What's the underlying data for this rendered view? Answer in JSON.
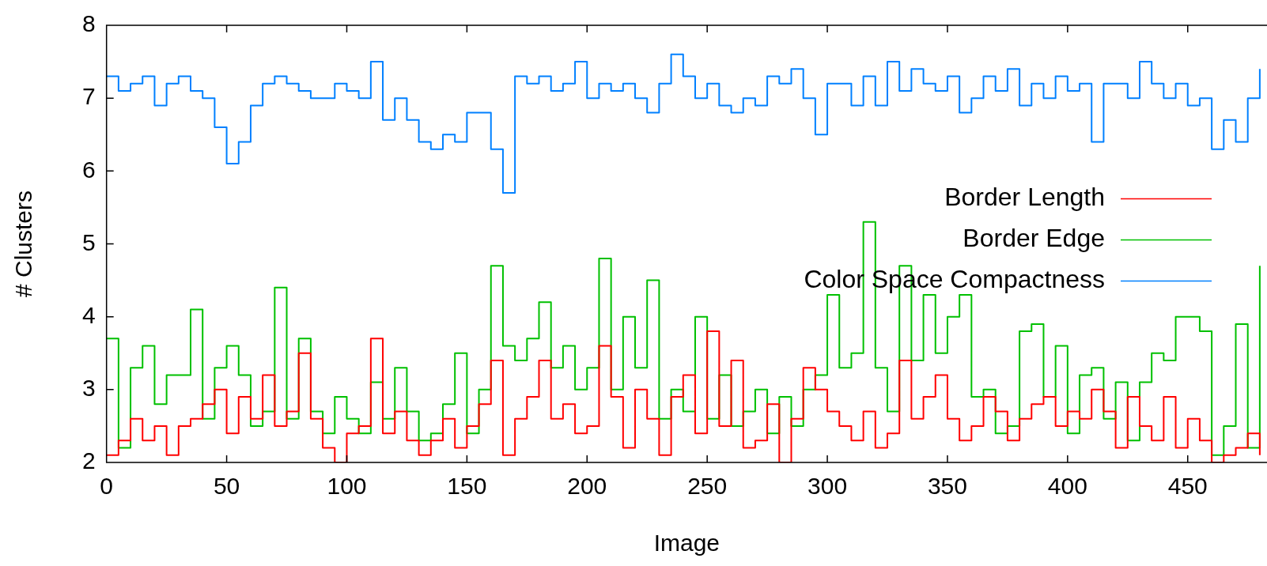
{
  "chart_data": {
    "type": "step",
    "xlabel": "Image",
    "ylabel": "# Clusters",
    "xlim": [
      0,
      483
    ],
    "xticks": [
      0,
      50,
      100,
      150,
      200,
      250,
      300,
      350,
      400,
      450
    ],
    "ylim": [
      2,
      8
    ],
    "yticks": [
      2,
      3,
      4,
      5,
      6,
      7,
      8
    ],
    "grid": false,
    "legend": "right",
    "marker": "none",
    "line_style": "solid",
    "x": [
      0,
      5,
      10,
      15,
      20,
      25,
      30,
      35,
      40,
      45,
      50,
      55,
      60,
      65,
      70,
      75,
      80,
      85,
      90,
      95,
      100,
      105,
      110,
      115,
      120,
      125,
      130,
      135,
      140,
      145,
      150,
      155,
      160,
      165,
      170,
      175,
      180,
      185,
      190,
      195,
      200,
      205,
      210,
      215,
      220,
      225,
      230,
      235,
      240,
      245,
      250,
      255,
      260,
      265,
      270,
      275,
      280,
      285,
      290,
      295,
      300,
      305,
      310,
      315,
      320,
      325,
      330,
      335,
      340,
      345,
      350,
      355,
      360,
      365,
      370,
      375,
      380,
      385,
      390,
      395,
      400,
      405,
      410,
      415,
      420,
      425,
      430,
      435,
      440,
      445,
      450,
      455,
      460,
      465,
      470,
      475,
      480
    ],
    "series": [
      {
        "name": "Border Length",
        "color": "#ff0000",
        "values": [
          2.1,
          2.3,
          2.6,
          2.3,
          2.5,
          2.1,
          2.5,
          2.6,
          2.8,
          3.0,
          2.4,
          2.9,
          2.6,
          3.2,
          2.5,
          2.7,
          3.5,
          2.6,
          2.2,
          2.0,
          2.4,
          2.5,
          3.7,
          2.4,
          2.7,
          2.3,
          2.1,
          2.3,
          2.6,
          2.2,
          2.5,
          2.8,
          3.4,
          2.1,
          2.6,
          2.9,
          3.4,
          2.6,
          2.8,
          2.4,
          2.5,
          3.6,
          2.9,
          2.2,
          3.0,
          2.6,
          2.1,
          2.9,
          3.2,
          2.4,
          3.8,
          2.5,
          3.4,
          2.2,
          2.3,
          2.8,
          2.0,
          2.6,
          3.3,
          3.0,
          2.7,
          2.5,
          2.3,
          2.7,
          2.2,
          2.4,
          3.4,
          2.6,
          2.9,
          3.2,
          2.6,
          2.3,
          2.5,
          2.9,
          2.7,
          2.3,
          2.6,
          2.8,
          2.9,
          2.5,
          2.7,
          2.6,
          3.0,
          2.7,
          2.2,
          2.9,
          2.5,
          2.3,
          2.9,
          2.2,
          2.6,
          2.3,
          2.0,
          2.1,
          2.2,
          2.4,
          2.1
        ]
      },
      {
        "name": "Border Edge",
        "color": "#00c000",
        "values": [
          3.7,
          2.2,
          3.3,
          3.6,
          2.8,
          3.2,
          3.2,
          4.1,
          2.6,
          3.3,
          3.6,
          3.2,
          2.5,
          2.7,
          4.4,
          2.6,
          3.7,
          2.7,
          2.4,
          2.9,
          2.6,
          2.4,
          3.1,
          2.6,
          3.3,
          2.7,
          2.3,
          2.4,
          2.8,
          3.5,
          2.4,
          3.0,
          4.7,
          3.6,
          3.4,
          3.7,
          4.2,
          3.3,
          3.6,
          3.0,
          3.3,
          4.8,
          3.0,
          4.0,
          3.3,
          4.5,
          2.6,
          3.0,
          2.7,
          4.0,
          2.6,
          3.2,
          2.5,
          2.7,
          3.0,
          2.4,
          2.9,
          2.5,
          3.0,
          3.2,
          4.3,
          3.3,
          3.5,
          5.3,
          3.3,
          2.7,
          4.7,
          3.4,
          4.3,
          3.5,
          4.0,
          4.3,
          2.9,
          3.0,
          2.4,
          2.5,
          3.8,
          3.9,
          2.9,
          3.6,
          2.4,
          3.2,
          3.3,
          2.6,
          3.1,
          2.3,
          3.1,
          3.5,
          3.4,
          4.0,
          4.0,
          3.8,
          2.1,
          2.5,
          3.9,
          2.2,
          4.7
        ]
      },
      {
        "name": "Color Space Compactness",
        "color": "#0080ff",
        "values": [
          7.3,
          7.1,
          7.2,
          7.3,
          6.9,
          7.2,
          7.3,
          7.1,
          7.0,
          6.6,
          6.1,
          6.4,
          6.9,
          7.2,
          7.3,
          7.2,
          7.1,
          7.0,
          7.0,
          7.2,
          7.1,
          7.0,
          7.5,
          6.7,
          7.0,
          6.7,
          6.4,
          6.3,
          6.5,
          6.4,
          6.8,
          6.8,
          6.3,
          5.7,
          7.3,
          7.2,
          7.3,
          7.1,
          7.2,
          7.5,
          7.0,
          7.2,
          7.1,
          7.2,
          7.0,
          6.8,
          7.2,
          7.6,
          7.3,
          7.0,
          7.2,
          6.9,
          6.8,
          7.0,
          6.9,
          7.3,
          7.2,
          7.4,
          7.0,
          6.5,
          7.2,
          7.2,
          6.9,
          7.3,
          6.9,
          7.5,
          7.1,
          7.4,
          7.2,
          7.1,
          7.3,
          6.8,
          7.0,
          7.3,
          7.1,
          7.4,
          6.9,
          7.2,
          7.0,
          7.3,
          7.1,
          7.2,
          6.4,
          7.2,
          7.2,
          7.0,
          7.5,
          7.2,
          7.0,
          7.2,
          6.9,
          7.0,
          6.3,
          6.7,
          6.4,
          7.0,
          7.4
        ]
      }
    ]
  }
}
